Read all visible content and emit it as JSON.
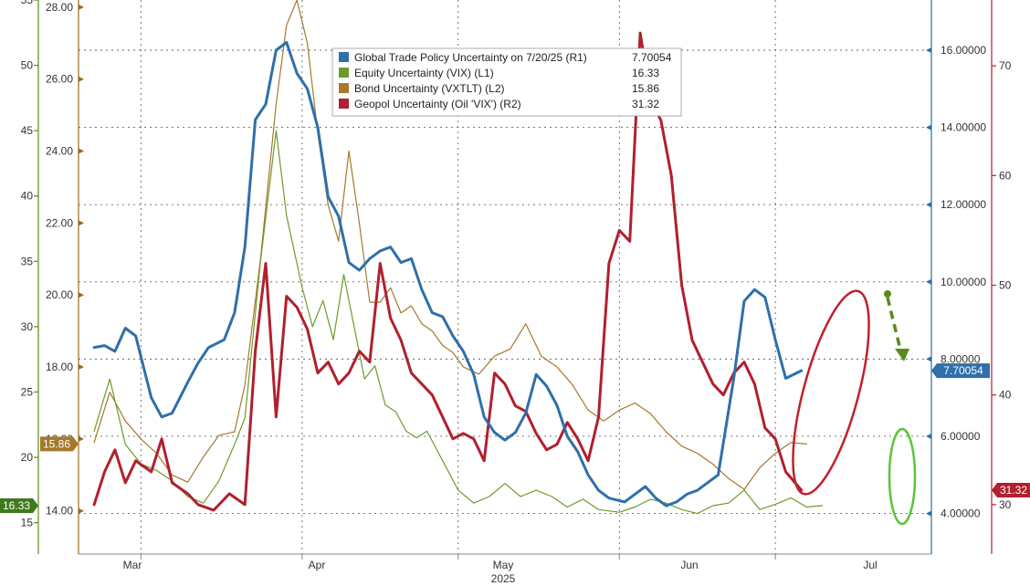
{
  "chart_data": {
    "type": "line",
    "x_axis": {
      "year_label": "2025",
      "month_labels": [
        "Mar",
        "Apr",
        "May",
        "Jun",
        "Jul"
      ],
      "range": [
        "2025-02-17",
        "2025-07-31"
      ]
    },
    "axes": {
      "L1": {
        "ticks": [
          "15",
          "20",
          "25",
          "30",
          "35",
          "40",
          "45",
          "50",
          "55"
        ],
        "range": [
          12.6,
          55
        ],
        "color": "#5f8a1c"
      },
      "L2": {
        "ticks": [
          "14.00",
          "16.00",
          "18.00",
          "20.00",
          "22.00",
          "24.00",
          "26.00",
          "28.00"
        ],
        "range": [
          12.8,
          28.2
        ],
        "color": "#9a6a1e"
      },
      "R1": {
        "ticks": [
          "4.00000",
          "6.00000",
          "8.00000",
          "10.00000",
          "12.00000",
          "14.00000",
          "16.00000"
        ],
        "range": [
          2.95,
          17.3
        ],
        "color": "#2a6da8"
      },
      "R2": {
        "ticks": [
          "30",
          "40",
          "50",
          "60",
          "70"
        ],
        "range": [
          25.5,
          76
        ],
        "color": "#b0202e"
      }
    },
    "legend": {
      "placement": "top-center",
      "entries": [
        {
          "label": "Global Trade Policy Uncertainty on 7/20/25 (R1)",
          "value": "7.70054",
          "color": "#2f6faa"
        },
        {
          "label": "Equity Uncertainty (VIX) (L1)",
          "value": "16.33",
          "color": "#6e9a2a"
        },
        {
          "label": "Bond Uncertainty (VXTLT) (L2)",
          "value": "15.86",
          "color": "#a5782e"
        },
        {
          "label": "Geopol Uncertainty (Oil 'VIX') (R2)",
          "value": "31.32",
          "color": "#b0202e"
        }
      ]
    },
    "last_value_tags": {
      "R1": "7.70054",
      "L2": "15.86",
      "L1": "16.33",
      "R2": "31.32"
    },
    "grid": true,
    "series": [
      {
        "name": "Global Trade Policy Uncertainty on 7/20/25 (R1)",
        "axis": "R1",
        "color": "#2f6faa",
        "width": 3,
        "points": [
          [
            "2025-02-20",
            8.3
          ],
          [
            "2025-02-22",
            8.35
          ],
          [
            "2025-02-24",
            8.2
          ],
          [
            "2025-02-26",
            8.8
          ],
          [
            "2025-02-28",
            8.6
          ],
          [
            "2025-03-03",
            7.0
          ],
          [
            "2025-03-05",
            6.5
          ],
          [
            "2025-03-07",
            6.6
          ],
          [
            "2025-03-10",
            7.4
          ],
          [
            "2025-03-12",
            7.9
          ],
          [
            "2025-03-14",
            8.3
          ],
          [
            "2025-03-17",
            8.5
          ],
          [
            "2025-03-19",
            9.2
          ],
          [
            "2025-03-21",
            10.9
          ],
          [
            "2025-03-23",
            14.2
          ],
          [
            "2025-03-25",
            14.6
          ],
          [
            "2025-03-27",
            16.0
          ],
          [
            "2025-03-29",
            16.2
          ],
          [
            "2025-03-31",
            15.4
          ],
          [
            "2025-04-02",
            15.0
          ],
          [
            "2025-04-04",
            14.0
          ],
          [
            "2025-04-06",
            12.2
          ],
          [
            "2025-04-08",
            11.7
          ],
          [
            "2025-04-10",
            10.5
          ],
          [
            "2025-04-12",
            10.3
          ],
          [
            "2025-04-14",
            10.6
          ],
          [
            "2025-04-16",
            10.8
          ],
          [
            "2025-04-18",
            10.9
          ],
          [
            "2025-04-20",
            10.5
          ],
          [
            "2025-04-22",
            10.6
          ],
          [
            "2025-04-24",
            9.8
          ],
          [
            "2025-04-26",
            9.2
          ],
          [
            "2025-04-28",
            9.1
          ],
          [
            "2025-04-30",
            8.6
          ],
          [
            "2025-05-02",
            8.2
          ],
          [
            "2025-05-04",
            7.6
          ],
          [
            "2025-05-06",
            6.5
          ],
          [
            "2025-05-08",
            6.1
          ],
          [
            "2025-05-10",
            5.9
          ],
          [
            "2025-05-12",
            6.1
          ],
          [
            "2025-05-14",
            6.6
          ],
          [
            "2025-05-16",
            7.6
          ],
          [
            "2025-05-18",
            7.3
          ],
          [
            "2025-05-20",
            6.8
          ],
          [
            "2025-05-22",
            6.0
          ],
          [
            "2025-05-24",
            5.6
          ],
          [
            "2025-05-26",
            5.0
          ],
          [
            "2025-05-28",
            4.6
          ],
          [
            "2025-05-30",
            4.4
          ],
          [
            "2025-06-02",
            4.3
          ],
          [
            "2025-06-04",
            4.5
          ],
          [
            "2025-06-06",
            4.7
          ],
          [
            "2025-06-08",
            4.4
          ],
          [
            "2025-06-10",
            4.2
          ],
          [
            "2025-06-12",
            4.3
          ],
          [
            "2025-06-14",
            4.5
          ],
          [
            "2025-06-16",
            4.6
          ],
          [
            "2025-06-18",
            4.8
          ],
          [
            "2025-06-20",
            5.0
          ],
          [
            "2025-06-23",
            7.5
          ],
          [
            "2025-06-25",
            9.5
          ],
          [
            "2025-06-27",
            9.8
          ],
          [
            "2025-06-29",
            9.6
          ],
          [
            "2025-07-01",
            8.5
          ],
          [
            "2025-07-03",
            7.5
          ],
          [
            "2025-07-06",
            7.7
          ]
        ]
      },
      {
        "name": "Equity Uncertainty (VIX) (L1)",
        "axis": "L1",
        "color": "#6e9a2a",
        "width": 1.2,
        "points": [
          [
            "2025-02-20",
            22.0
          ],
          [
            "2025-02-23",
            26.0
          ],
          [
            "2025-02-26",
            21.0
          ],
          [
            "2025-03-01",
            19.5
          ],
          [
            "2025-03-04",
            19.0
          ],
          [
            "2025-03-07",
            18.2
          ],
          [
            "2025-03-10",
            17.0
          ],
          [
            "2025-03-13",
            16.5
          ],
          [
            "2025-03-16",
            18.2
          ],
          [
            "2025-03-19",
            21.0
          ],
          [
            "2025-03-21",
            23.0
          ],
          [
            "2025-03-24",
            35.0
          ],
          [
            "2025-03-27",
            45.0
          ],
          [
            "2025-03-29",
            38.5
          ],
          [
            "2025-04-01",
            33.0
          ],
          [
            "2025-04-03",
            30.0
          ],
          [
            "2025-04-05",
            32.0
          ],
          [
            "2025-04-07",
            29.0
          ],
          [
            "2025-04-09",
            34.0
          ],
          [
            "2025-04-11",
            30.0
          ],
          [
            "2025-04-13",
            26.0
          ],
          [
            "2025-04-15",
            27.0
          ],
          [
            "2025-04-17",
            24.0
          ],
          [
            "2025-04-19",
            23.5
          ],
          [
            "2025-04-21",
            22.0
          ],
          [
            "2025-04-23",
            21.5
          ],
          [
            "2025-04-25",
            22.0
          ],
          [
            "2025-04-27",
            20.5
          ],
          [
            "2025-04-29",
            19.0
          ],
          [
            "2025-05-01",
            17.5
          ],
          [
            "2025-05-04",
            16.5
          ],
          [
            "2025-05-07",
            17.0
          ],
          [
            "2025-05-10",
            18.0
          ],
          [
            "2025-05-13",
            17.0
          ],
          [
            "2025-05-16",
            17.5
          ],
          [
            "2025-05-19",
            17.0
          ],
          [
            "2025-05-22",
            16.2
          ],
          [
            "2025-05-25",
            16.8
          ],
          [
            "2025-05-28",
            16.0
          ],
          [
            "2025-06-01",
            15.8
          ],
          [
            "2025-06-04",
            16.2
          ],
          [
            "2025-06-07",
            16.8
          ],
          [
            "2025-06-10",
            16.5
          ],
          [
            "2025-06-13",
            16.0
          ],
          [
            "2025-06-16",
            15.7
          ],
          [
            "2025-06-19",
            16.3
          ],
          [
            "2025-06-22",
            16.5
          ],
          [
            "2025-06-25",
            17.5
          ],
          [
            "2025-06-28",
            16.0
          ],
          [
            "2025-07-01",
            16.4
          ],
          [
            "2025-07-04",
            16.9
          ],
          [
            "2025-07-07",
            16.2
          ],
          [
            "2025-07-10",
            16.3
          ]
        ]
      },
      {
        "name": "Bond Uncertainty (VXTLT) (L2)",
        "axis": "L2",
        "color": "#a5782e",
        "width": 1.2,
        "points": [
          [
            "2025-02-20",
            15.9
          ],
          [
            "2025-02-23",
            17.3
          ],
          [
            "2025-02-26",
            16.5
          ],
          [
            "2025-03-01",
            16.0
          ],
          [
            "2025-03-04",
            15.6
          ],
          [
            "2025-03-07",
            15.0
          ],
          [
            "2025-03-10",
            14.8
          ],
          [
            "2025-03-13",
            15.5
          ],
          [
            "2025-03-16",
            16.1
          ],
          [
            "2025-03-19",
            16.2
          ],
          [
            "2025-03-21",
            17.5
          ],
          [
            "2025-03-24",
            21.0
          ],
          [
            "2025-03-27",
            25.3
          ],
          [
            "2025-03-29",
            27.5
          ],
          [
            "2025-03-31",
            28.2
          ],
          [
            "2025-04-02",
            27.0
          ],
          [
            "2025-04-04",
            24.5
          ],
          [
            "2025-04-06",
            22.5
          ],
          [
            "2025-04-08",
            21.5
          ],
          [
            "2025-04-10",
            24.0
          ],
          [
            "2025-04-12",
            22.0
          ],
          [
            "2025-04-14",
            19.8
          ],
          [
            "2025-04-16",
            19.8
          ],
          [
            "2025-04-18",
            20.2
          ],
          [
            "2025-04-20",
            19.5
          ],
          [
            "2025-04-22",
            19.7
          ],
          [
            "2025-04-24",
            19.2
          ],
          [
            "2025-04-26",
            19.0
          ],
          [
            "2025-04-28",
            18.6
          ],
          [
            "2025-04-30",
            18.4
          ],
          [
            "2025-05-02",
            18.0
          ],
          [
            "2025-05-05",
            17.8
          ],
          [
            "2025-05-08",
            18.3
          ],
          [
            "2025-05-11",
            18.5
          ],
          [
            "2025-05-14",
            19.2
          ],
          [
            "2025-05-17",
            18.3
          ],
          [
            "2025-05-20",
            18.0
          ],
          [
            "2025-05-23",
            17.5
          ],
          [
            "2025-05-26",
            16.8
          ],
          [
            "2025-05-29",
            16.5
          ],
          [
            "2025-06-01",
            16.8
          ],
          [
            "2025-06-04",
            17.0
          ],
          [
            "2025-06-07",
            16.7
          ],
          [
            "2025-06-10",
            16.2
          ],
          [
            "2025-06-13",
            15.8
          ],
          [
            "2025-06-16",
            15.6
          ],
          [
            "2025-06-19",
            15.3
          ],
          [
            "2025-06-22",
            14.9
          ],
          [
            "2025-06-25",
            14.6
          ],
          [
            "2025-06-28",
            15.2
          ],
          [
            "2025-07-01",
            15.6
          ],
          [
            "2025-07-04",
            15.9
          ],
          [
            "2025-07-07",
            15.86
          ]
        ]
      },
      {
        "name": "Geopol Uncertainty (Oil 'VIX') (R2)",
        "axis": "R2",
        "color": "#b0202e",
        "width": 3,
        "points": [
          [
            "2025-02-20",
            30.0
          ],
          [
            "2025-02-22",
            33.0
          ],
          [
            "2025-02-24",
            35.0
          ],
          [
            "2025-02-26",
            32.0
          ],
          [
            "2025-02-28",
            34.0
          ],
          [
            "2025-03-03",
            33.0
          ],
          [
            "2025-03-05",
            36.0
          ],
          [
            "2025-03-07",
            32.0
          ],
          [
            "2025-03-10",
            31.0
          ],
          [
            "2025-03-12",
            30.0
          ],
          [
            "2025-03-15",
            29.5
          ],
          [
            "2025-03-18",
            31.0
          ],
          [
            "2025-03-21",
            30.0
          ],
          [
            "2025-03-23",
            44.0
          ],
          [
            "2025-03-25",
            52.0
          ],
          [
            "2025-03-27",
            38.0
          ],
          [
            "2025-03-29",
            49.0
          ],
          [
            "2025-03-31",
            48.0
          ],
          [
            "2025-04-02",
            46.0
          ],
          [
            "2025-04-04",
            42.0
          ],
          [
            "2025-04-06",
            43.0
          ],
          [
            "2025-04-08",
            41.0
          ],
          [
            "2025-04-10",
            42.0
          ],
          [
            "2025-04-12",
            44.0
          ],
          [
            "2025-04-14",
            43.0
          ],
          [
            "2025-04-16",
            52.0
          ],
          [
            "2025-04-18",
            47.0
          ],
          [
            "2025-04-20",
            45.0
          ],
          [
            "2025-04-22",
            42.0
          ],
          [
            "2025-04-24",
            41.0
          ],
          [
            "2025-04-26",
            40.0
          ],
          [
            "2025-04-28",
            38.0
          ],
          [
            "2025-04-30",
            36.0
          ],
          [
            "2025-05-02",
            36.5
          ],
          [
            "2025-05-04",
            36.0
          ],
          [
            "2025-05-06",
            34.0
          ],
          [
            "2025-05-08",
            42.0
          ],
          [
            "2025-05-10",
            41.0
          ],
          [
            "2025-05-12",
            39.0
          ],
          [
            "2025-05-14",
            38.5
          ],
          [
            "2025-05-16",
            36.5
          ],
          [
            "2025-05-18",
            35.0
          ],
          [
            "2025-05-20",
            35.5
          ],
          [
            "2025-05-22",
            37.5
          ],
          [
            "2025-05-24",
            36.0
          ],
          [
            "2025-05-26",
            34.0
          ],
          [
            "2025-05-28",
            38.0
          ],
          [
            "2025-05-30",
            52.0
          ],
          [
            "2025-06-01",
            55.0
          ],
          [
            "2025-06-03",
            54.0
          ],
          [
            "2025-06-05",
            73.0
          ],
          [
            "2025-06-07",
            67.0
          ],
          [
            "2025-06-09",
            65.0
          ],
          [
            "2025-06-11",
            60.0
          ],
          [
            "2025-06-13",
            50.0
          ],
          [
            "2025-06-15",
            45.0
          ],
          [
            "2025-06-17",
            43.0
          ],
          [
            "2025-06-19",
            41.0
          ],
          [
            "2025-06-21",
            40.0
          ],
          [
            "2025-06-23",
            42.0
          ],
          [
            "2025-06-25",
            43.0
          ],
          [
            "2025-06-27",
            41.0
          ],
          [
            "2025-06-29",
            37.0
          ],
          [
            "2025-07-01",
            36.0
          ],
          [
            "2025-07-03",
            33.0
          ],
          [
            "2025-07-06",
            31.32
          ]
        ]
      }
    ],
    "annotations": {
      "red_ellipse_color": "#c0202e",
      "green_ellipse_color": "#5cc43a",
      "arrow_color": "#5a8a1a"
    }
  }
}
